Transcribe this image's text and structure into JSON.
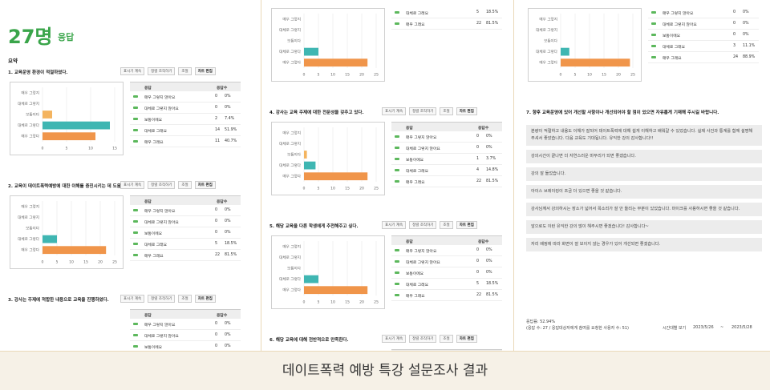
{
  "caption": "데이트폭력 예방 특강 설문조사 결과",
  "header": {
    "count": "27명",
    "suffix": "응답",
    "summary": "요약"
  },
  "buttons": [
    "표시기 계속",
    "정렬 조작하기",
    "조절",
    "차트 편집"
  ],
  "table_header": [
    "응답",
    "응답수"
  ],
  "panels": [
    [
      {
        "title": "1. 교육운영 환경이 적절하였다.",
        "chart": {
          "categories": [
            "매우 그렇지",
            "대체로 그렇지",
            "보통이다",
            "대체로 그렇다",
            "매우 그렇다"
          ],
          "values": [
            0,
            0,
            2,
            14,
            11
          ],
          "colors": [
            "#5b9bd5",
            "#a5a5a5",
            "#f4b45f",
            "#3fb6b2",
            "#f0954a"
          ],
          "xlim": [
            0,
            15
          ],
          "xticks": [
            0,
            5,
            10,
            15
          ]
        },
        "rows": [
          [
            "매우 그렇지 않아요",
            0,
            "0%"
          ],
          [
            "대체로 그렇지 않아요",
            0,
            "0%"
          ],
          [
            "보통이에요",
            2,
            "7.4%"
          ],
          [
            "대체로 그래요",
            14,
            "51.9%"
          ],
          [
            "매우 그래요",
            11,
            "40.7%"
          ]
        ]
      },
      {
        "title": "2. 교육이 데이트폭력예방에 대한 이해를 증진시키는 데 도움이 되었다.",
        "chart": {
          "categories": [
            "매우 그렇지",
            "대체로 그렇지",
            "보통이다",
            "대체로 그렇다",
            "매우 그렇다"
          ],
          "values": [
            0,
            0,
            0,
            5,
            22
          ],
          "colors": [
            "#5b9bd5",
            "#a5a5a5",
            "#f4b45f",
            "#3fb6b2",
            "#f0954a"
          ],
          "xlim": [
            0,
            25
          ],
          "xticks": [
            0,
            5,
            10,
            15,
            20,
            25
          ]
        },
        "rows": [
          [
            "매우 그렇지 않아요",
            0,
            "0%"
          ],
          [
            "대체로 그렇지 않아요",
            0,
            "0%"
          ],
          [
            "보통이에요",
            0,
            "0%"
          ],
          [
            "대체로 그래요",
            5,
            "18.5%"
          ],
          [
            "매우 그래요",
            22,
            "81.5%"
          ]
        ]
      },
      {
        "title": "3. 강사는 주제에 적합한 내용으로 교육을 진행하였다.",
        "rows": [
          [
            "매우 그렇지 않아요",
            0,
            "0%"
          ],
          [
            "대체로 그렇지 않아요",
            0,
            "0%"
          ],
          [
            "보통이에요",
            0,
            "0%"
          ]
        ]
      }
    ],
    [
      {
        "chart": {
          "categories": [
            "매우 그렇지",
            "대체로 그렇지",
            "보통이다",
            "대체로 그렇다",
            "매우 그렇다"
          ],
          "values": [
            0,
            0,
            0,
            5,
            22
          ],
          "colors": [
            "#5b9bd5",
            "#a5a5a5",
            "#f4b45f",
            "#3fb6b2",
            "#f0954a"
          ],
          "xlim": [
            0,
            25
          ],
          "xticks": [
            0,
            5,
            10,
            15,
            20,
            25
          ]
        },
        "rows": [
          [
            "대체로 그래요",
            5,
            "18.5%"
          ],
          [
            "매우 그래요",
            22,
            "81.5%"
          ]
        ]
      },
      {
        "title": "4. 강사는 교육 주제에 대한 전문성을 갖추고 있다.",
        "chart": {
          "categories": [
            "매우 그렇지",
            "대체로 그렇지",
            "보통이다",
            "대체로 그렇다",
            "매우 그렇다"
          ],
          "values": [
            0,
            0,
            1,
            4,
            22
          ],
          "colors": [
            "#5b9bd5",
            "#a5a5a5",
            "#f4b45f",
            "#3fb6b2",
            "#f0954a"
          ],
          "xlim": [
            0,
            25
          ],
          "xticks": [
            0,
            5,
            10,
            15,
            20,
            25
          ]
        },
        "rows": [
          [
            "매우 그렇지 않아요",
            0,
            "0%"
          ],
          [
            "대체로 그렇지 않아요",
            0,
            "0%"
          ],
          [
            "보통이에요",
            1,
            "3.7%"
          ],
          [
            "대체로 그래요",
            4,
            "14.8%"
          ],
          [
            "매우 그래요",
            22,
            "81.5%"
          ]
        ]
      },
      {
        "title": "5. 해당 교육을 다른 학생에게 추천해주고 싶다.",
        "chart": {
          "categories": [
            "매우 그렇지",
            "대체로 그렇지",
            "보통이다",
            "대체로 그렇다",
            "매우 그렇다"
          ],
          "values": [
            0,
            0,
            0,
            5,
            22
          ],
          "colors": [
            "#5b9bd5",
            "#a5a5a5",
            "#f4b45f",
            "#3fb6b2",
            "#f0954a"
          ],
          "xlim": [
            0,
            25
          ],
          "xticks": [
            0,
            5,
            10,
            15,
            20,
            25
          ]
        },
        "rows": [
          [
            "매우 그렇지 않아요",
            0,
            "0%"
          ],
          [
            "대체로 그렇지 않아요",
            0,
            "0%"
          ],
          [
            "보통이에요",
            0,
            "0%"
          ],
          [
            "대체로 그래요",
            5,
            "18.5%"
          ],
          [
            "매우 그래요",
            22,
            "81.5%"
          ]
        ]
      },
      {
        "title": "6. 해당 교육에 대해 전반적으로 만족한다.",
        "rows": []
      }
    ],
    [
      {
        "chart": {
          "categories": [
            "매우 그렇지",
            "대체로 그렇지",
            "보통이다",
            "대체로 그렇다",
            "매우 그렇다"
          ],
          "values": [
            0,
            0,
            0,
            3,
            24
          ],
          "colors": [
            "#5b9bd5",
            "#a5a5a5",
            "#f4b45f",
            "#3fb6b2",
            "#f0954a"
          ],
          "xlim": [
            0,
            25
          ],
          "xticks": [
            0,
            5,
            10,
            15,
            20,
            25
          ]
        },
        "rows": [
          [
            "매우 그렇지 않아요",
            0,
            "0%"
          ],
          [
            "대체로 그렇지 않아요",
            0,
            "0%"
          ],
          [
            "보통이에요",
            0,
            "0%"
          ],
          [
            "대체로 그래요",
            3,
            "11.1%"
          ],
          [
            "매우 그래요",
            24,
            "88.9%"
          ]
        ]
      },
      {
        "title": "7. 향후 교육운영에 있어 개선할 사항이나 개선되어야 할 점이 있으면 자유롭게 기재해 주시길 바랍니다.",
        "comments": [
          "분량이 적절하고 내용도 이해가 잘되어 데이트폭력에 대해 쉽게 이해하고 배워갈 수 있었습니다. 실제 사건과 통계를 함께 설명해 주셔서 좋았습니다. 다음 교육도 기대됩니다. 유익한 강의 감사합니다!!",
          "강의시간이 끝나면 더 자연스러운 마무리가 되면 좋겠습니다.",
          "강의 잘 들었습니다.",
          "아이스 브레이킹이 조금 더 있으면 좋을 것 같습니다.",
          "강사님께서 강의하시는 장소가 넓어서 목소리가 잘 안 들리는 부분이 있었습니다. 마이크를 사용하시면 좋을 것 같습니다.",
          "앞으로도 이런 유익한 강의 많이 해주시면 좋겠습니다! 감사합니다~",
          "자리 배정에 따라 화면이 잘 보이지 않는 경우가 있어 개선되면 좋겠습니다."
        ]
      }
    ]
  ],
  "footer": {
    "rate": "응답률: 52.94%",
    "detail": "(응답 수: 27 / 응답대상자에게 참여를 요청한 사용자 수: 51)",
    "view": "시간대별 보기",
    "from": "2023/5/26",
    "sep": "~",
    "to": "2023/5/28"
  }
}
